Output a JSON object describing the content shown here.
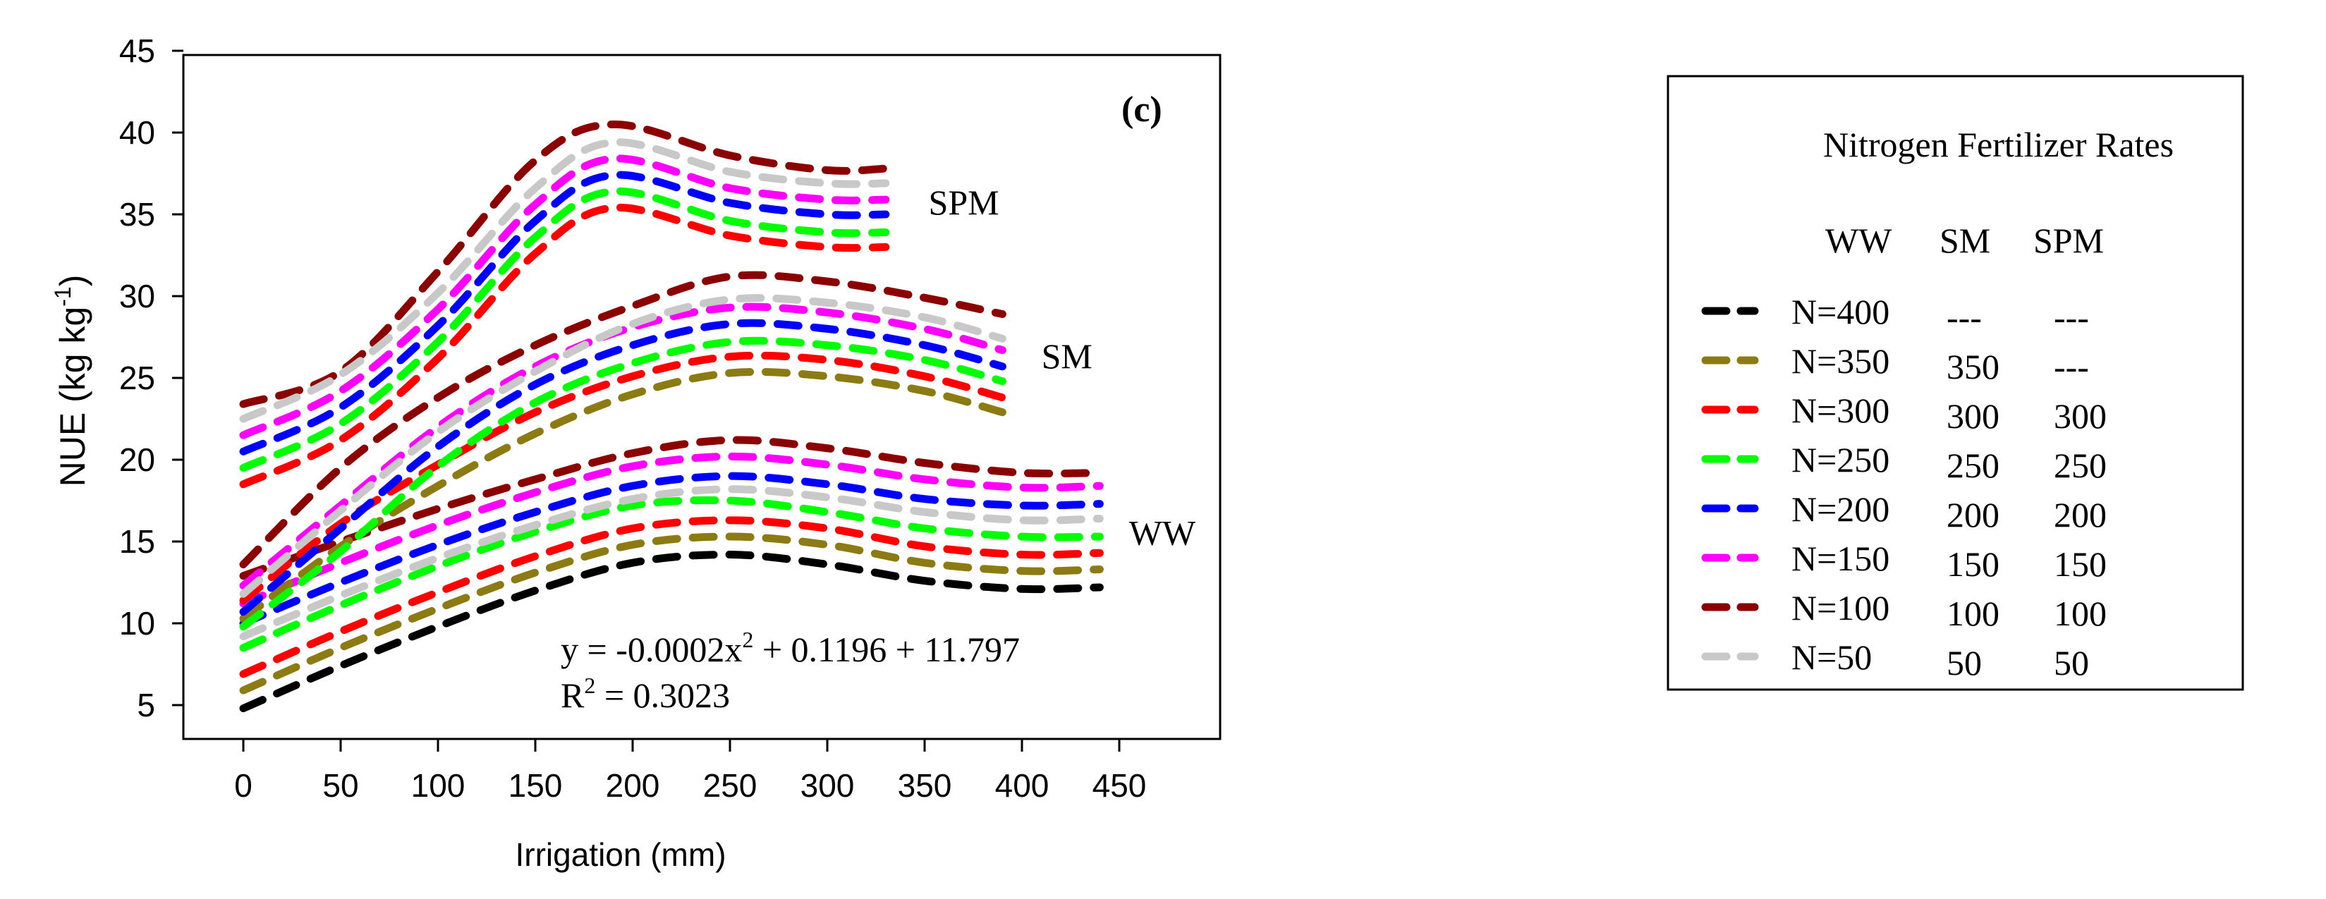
{
  "chart_data": {
    "type": "line",
    "panel_label": "(c)",
    "xlabel": "Irrigation (mm)",
    "ylabel": "NUE (kg kg",
    "ylabel_sup": "-1",
    "ylabel_end": ")",
    "xlim": [
      -30,
      500
    ],
    "ylim": [
      2,
      45
    ],
    "x_ticks": [
      0,
      50,
      100,
      150,
      200,
      250,
      300,
      350,
      400,
      450
    ],
    "y_ticks": [
      5,
      10,
      15,
      20,
      25,
      30,
      35,
      40,
      45
    ],
    "group_labels": [
      {
        "text": "SPM",
        "x": 352,
        "y": 35
      },
      {
        "text": "SM",
        "x": 410,
        "y": 25.6
      },
      {
        "text": "WW",
        "x": 455,
        "y": 14.8
      }
    ],
    "equation": {
      "line1_a": "y = -0.0002x",
      "line1_sup": "2",
      "line1_b": " + 0.1196 + 11.797",
      "line2_a": "R",
      "line2_sup": "2",
      "line2_b": " = 0.3023"
    },
    "series": [
      {
        "name": "WW N=400",
        "group": "WW",
        "color": "#000000",
        "x": [
          0,
          50,
          100,
          150,
          200,
          250,
          300,
          350,
          400,
          440
        ],
        "y": [
          4.8,
          7.4,
          9.8,
          12.0,
          13.7,
          14.2,
          13.6,
          12.6,
          12.1,
          12.2
        ]
      },
      {
        "name": "WW N=350",
        "group": "WW",
        "color": "#8c7a12",
        "x": [
          0,
          50,
          100,
          150,
          200,
          250,
          300,
          350,
          400,
          440
        ],
        "y": [
          5.9,
          8.5,
          10.9,
          13.1,
          14.8,
          15.3,
          14.8,
          13.7,
          13.2,
          13.3
        ]
      },
      {
        "name": "WW N=300",
        "group": "WW",
        "color": "#ff0000",
        "x": [
          0,
          50,
          100,
          150,
          200,
          250,
          300,
          350,
          400,
          440
        ],
        "y": [
          6.9,
          9.5,
          11.9,
          14.1,
          15.8,
          16.3,
          15.8,
          14.7,
          14.2,
          14.3
        ]
      },
      {
        "name": "WW N=250",
        "group": "WW",
        "color": "#00ff00",
        "x": [
          0,
          50,
          100,
          150,
          200,
          250,
          300,
          350,
          400,
          440
        ],
        "y": [
          8.5,
          11.1,
          13.5,
          15.6,
          17.2,
          17.5,
          16.8,
          15.8,
          15.3,
          15.3
        ]
      },
      {
        "name": "WW N=200",
        "group": "WW",
        "color": "#0000ff",
        "x": [
          0,
          50,
          100,
          150,
          200,
          250,
          300,
          350,
          400,
          440
        ],
        "y": [
          10.0,
          12.5,
          14.8,
          16.8,
          18.4,
          19.0,
          18.5,
          17.6,
          17.2,
          17.3
        ]
      },
      {
        "name": "WW N=150",
        "group": "WW",
        "color": "#ff00ff",
        "x": [
          0,
          50,
          100,
          150,
          200,
          250,
          300,
          350,
          400,
          440
        ],
        "y": [
          11.2,
          13.7,
          16.0,
          18.0,
          19.6,
          20.2,
          19.7,
          18.8,
          18.3,
          18.4
        ]
      },
      {
        "name": "WW N=100",
        "group": "WW",
        "color": "#8b0000",
        "x": [
          0,
          50,
          100,
          150,
          200,
          250,
          300,
          350,
          400,
          440
        ],
        "y": [
          12.9,
          15.0,
          17.0,
          18.8,
          20.4,
          21.2,
          20.7,
          19.8,
          19.2,
          19.2
        ]
      },
      {
        "name": "WW N=50",
        "group": "WW",
        "color": "#c8c8c8",
        "x": [
          0,
          50,
          100,
          150,
          200,
          250,
          300,
          350,
          400,
          440
        ],
        "y": [
          9.2,
          11.7,
          14.0,
          16.0,
          17.6,
          18.2,
          17.7,
          16.8,
          16.3,
          16.4
        ]
      },
      {
        "name": "SM N=350",
        "group": "SM",
        "color": "#8c7a12",
        "x": [
          0,
          50,
          100,
          150,
          200,
          250,
          300,
          350,
          390
        ],
        "y": [
          10.3,
          14.7,
          18.4,
          21.6,
          24.0,
          25.3,
          25.1,
          24.2,
          22.9
        ]
      },
      {
        "name": "SM N=300",
        "group": "SM",
        "color": "#ff0000",
        "x": [
          0,
          50,
          100,
          150,
          200,
          250,
          300,
          350,
          390
        ],
        "y": [
          11.4,
          16.1,
          19.7,
          22.9,
          25.1,
          26.3,
          26.1,
          25.1,
          23.8
        ]
      },
      {
        "name": "SM N=250",
        "group": "SM",
        "color": "#00ff00",
        "x": [
          0,
          50,
          100,
          150,
          200,
          250,
          300,
          350,
          390
        ],
        "y": [
          9.8,
          14.4,
          19.6,
          23.5,
          25.9,
          27.2,
          27.0,
          26.1,
          24.8
        ]
      },
      {
        "name": "SM N=200",
        "group": "SM",
        "color": "#0000ff",
        "x": [
          0,
          50,
          100,
          150,
          200,
          250,
          300,
          350,
          390
        ],
        "y": [
          10.7,
          15.8,
          20.8,
          24.6,
          27.0,
          28.3,
          28.0,
          27.0,
          25.7
        ]
      },
      {
        "name": "SM N=150",
        "group": "SM",
        "color": "#ff00ff",
        "x": [
          0,
          50,
          100,
          150,
          200,
          250,
          300,
          350,
          390
        ],
        "y": [
          12.3,
          17.2,
          22.0,
          25.7,
          28.1,
          29.3,
          29.0,
          28.0,
          26.7
        ]
      },
      {
        "name": "SM N=100",
        "group": "SM",
        "color": "#8b0000",
        "x": [
          0,
          50,
          100,
          150,
          200,
          250,
          300,
          350,
          390
        ],
        "y": [
          13.6,
          19.5,
          23.8,
          27.0,
          29.4,
          31.2,
          30.9,
          29.9,
          28.9
        ]
      },
      {
        "name": "SM N=50",
        "group": "SM",
        "color": "#c8c8c8",
        "x": [
          0,
          50,
          100,
          150,
          200,
          250,
          300,
          350,
          390
        ],
        "y": [
          11.8,
          16.9,
          21.7,
          25.4,
          28.3,
          29.8,
          29.6,
          28.7,
          27.4
        ]
      },
      {
        "name": "SPM N=300",
        "group": "SPM",
        "color": "#ff0000",
        "x": [
          0,
          50,
          100,
          150,
          190,
          250,
          300,
          330
        ],
        "y": [
          18.5,
          21.2,
          26.2,
          32.6,
          35.4,
          33.7,
          33.0,
          33.0
        ]
      },
      {
        "name": "SPM N=250",
        "group": "SPM",
        "color": "#00ff00",
        "x": [
          0,
          50,
          100,
          150,
          190,
          250,
          300,
          330
        ],
        "y": [
          19.5,
          22.2,
          27.2,
          33.6,
          36.4,
          34.6,
          33.9,
          33.9
        ]
      },
      {
        "name": "SPM N=200",
        "group": "SPM",
        "color": "#0000ff",
        "x": [
          0,
          50,
          100,
          150,
          190,
          250,
          300,
          330
        ],
        "y": [
          20.5,
          23.2,
          28.2,
          34.6,
          37.4,
          35.7,
          35.0,
          35.0
        ]
      },
      {
        "name": "SPM N=150",
        "group": "SPM",
        "color": "#ff00ff",
        "x": [
          0,
          50,
          100,
          150,
          190,
          250,
          300,
          330
        ],
        "y": [
          21.5,
          24.2,
          29.2,
          35.6,
          38.4,
          36.6,
          35.9,
          35.9
        ]
      },
      {
        "name": "SPM N=100",
        "group": "SPM",
        "color": "#8b0000",
        "x": [
          0,
          50,
          100,
          150,
          190,
          250,
          300,
          330
        ],
        "y": [
          23.4,
          25.4,
          31.5,
          38.3,
          40.5,
          38.6,
          37.7,
          37.8
        ]
      },
      {
        "name": "SPM N=50",
        "group": "SPM",
        "color": "#c8c8c8",
        "x": [
          0,
          50,
          100,
          150,
          190,
          250,
          300,
          330
        ],
        "y": [
          22.5,
          25.2,
          30.2,
          36.6,
          39.4,
          37.6,
          36.9,
          36.9
        ]
      }
    ]
  },
  "legend": {
    "title": "Nitrogen Fertilizer Rates",
    "headers": [
      "WW",
      "SM",
      "SPM"
    ],
    "rows": [
      {
        "color": "#000000",
        "ww": "N=400",
        "sm": "---",
        "spm": "---"
      },
      {
        "color": "#8c7a12",
        "ww": "N=350",
        "sm": "350",
        "spm": "---"
      },
      {
        "color": "#ff0000",
        "ww": "N=300",
        "sm": "300",
        "spm": "300"
      },
      {
        "color": "#00ff00",
        "ww": "N=250",
        "sm": "250",
        "spm": "250"
      },
      {
        "color": "#0000ff",
        "ww": "N=200",
        "sm": "200",
        "spm": "200"
      },
      {
        "color": "#ff00ff",
        "ww": "N=150",
        "sm": "150",
        "spm": "150"
      },
      {
        "color": "#8b0000",
        "ww": "N=100",
        "sm": "100",
        "spm": "100"
      },
      {
        "color": "#c8c8c8",
        "ww": "N=50",
        "sm": "50",
        "spm": "50"
      }
    ]
  }
}
